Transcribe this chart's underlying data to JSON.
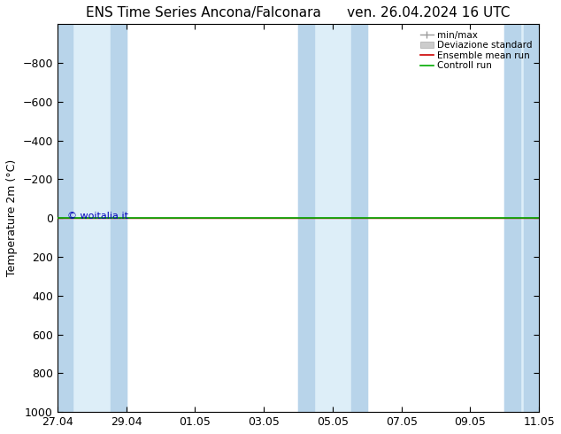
{
  "title_left": "ENS Time Series Ancona/Falconara",
  "title_right": "ven. 26.04.2024 16 UTC",
  "ylabel": "Temperature 2m (°C)",
  "watermark": "© woitalia.it",
  "ylim_top": -1000,
  "ylim_bottom": 1000,
  "yticks": [
    -800,
    -600,
    -400,
    -200,
    0,
    200,
    400,
    600,
    800,
    1000
  ],
  "x_tick_labels": [
    "27.04",
    "29.04",
    "01.05",
    "03.05",
    "05.05",
    "07.05",
    "09.05",
    "11.05"
  ],
  "x_positions": [
    0,
    2,
    4,
    6,
    8,
    10,
    12,
    14
  ],
  "x_min": 0,
  "x_max": 14,
  "shaded_bands": [
    {
      "xmin": 0.0,
      "xmax": 0.5,
      "color": "#cce0f0"
    },
    {
      "xmin": 1.5,
      "xmax": 2.0,
      "color": "#cce0f0"
    },
    {
      "xmin": 7.5,
      "xmax": 8.5,
      "color": "#cce0f0"
    },
    {
      "xmin": 13.5,
      "xmax": 14.0,
      "color": "#cce0f0"
    }
  ],
  "wide_bands": [
    {
      "xmin": 0.0,
      "xmax": 2.0,
      "color": "#deedf8"
    },
    {
      "xmin": 7.5,
      "xmax": 8.5,
      "color": "#deedf8"
    },
    {
      "xmin": 13.5,
      "xmax": 14.0,
      "color": "#deedf8"
    }
  ],
  "ensemble_mean_color": "#cc0000",
  "control_run_color": "#00aa00",
  "minmax_color": "#aaaaaa",
  "std_color": "#cccccc",
  "background_color": "#ffffff",
  "legend_labels": [
    "min/max",
    "Deviazione standard",
    "Ensemble mean run",
    "Controll run"
  ],
  "title_fontsize": 11,
  "axis_fontsize": 9,
  "tick_fontsize": 9,
  "watermark_color": "#0000bb"
}
